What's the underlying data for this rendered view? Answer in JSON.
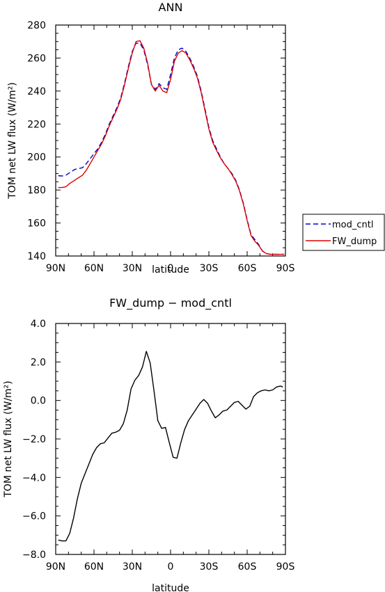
{
  "chart_data": [
    {
      "type": "line",
      "title": "ANN",
      "xlabel": "latitude",
      "ylabel": "TOM net LW flux (W/m²)",
      "x_tick_labels": [
        "90N",
        "60N",
        "30N",
        "0",
        "30S",
        "60S",
        "90S"
      ],
      "x_ticks": [
        -90,
        -60,
        -30,
        0,
        30,
        60,
        90
      ],
      "xlim": [
        -90,
        90
      ],
      "y_ticks": [
        140,
        160,
        180,
        200,
        220,
        240,
        260,
        280
      ],
      "ylim": [
        140,
        280
      ],
      "legend_position": "outside-right",
      "series": [
        {
          "name": "mod_cntl",
          "color": "#0000cc",
          "dash": "dashed",
          "x": [
            -88,
            -85,
            -82,
            -79,
            -75,
            -72,
            -69,
            -66,
            -63,
            -60,
            -57,
            -54,
            -51,
            -48,
            -45,
            -42,
            -39,
            -36,
            -33,
            -30,
            -27,
            -24,
            -21,
            -18,
            -15,
            -12,
            -9,
            -6,
            -3,
            0,
            3,
            6,
            9,
            12,
            15,
            18,
            21,
            24,
            27,
            30,
            33,
            36,
            39,
            42,
            45,
            48,
            51,
            54,
            57,
            60,
            63,
            66,
            69,
            72,
            75,
            78,
            81,
            84,
            87,
            89
          ],
          "y": [
            188.7,
            188.5,
            189,
            190.5,
            192.5,
            193,
            193.5,
            196,
            199,
            202,
            205,
            209,
            214,
            220,
            225,
            230,
            236,
            245,
            255,
            264,
            269,
            269,
            265,
            256,
            244,
            241,
            244.5,
            242,
            241,
            250,
            260,
            265,
            266,
            264,
            260,
            255,
            249,
            240,
            229,
            218,
            210,
            205,
            200,
            196,
            193,
            190,
            186,
            180,
            172,
            162,
            153,
            150,
            147,
            143,
            141.5,
            141,
            141,
            141,
            141,
            141
          ],
          "__note": null
        },
        {
          "name": "FW_dump",
          "color": "#dd0000",
          "dash": "solid",
          "x": [
            -88,
            -85,
            -82,
            -79,
            -75,
            -72,
            -69,
            -66,
            -63,
            -60,
            -57,
            -54,
            -51,
            -48,
            -45,
            -42,
            -39,
            -36,
            -33,
            -30,
            -27,
            -24,
            -21,
            -18,
            -15,
            -12,
            -9,
            -6,
            -3,
            0,
            3,
            6,
            9,
            12,
            15,
            18,
            21,
            24,
            27,
            30,
            33,
            36,
            39,
            42,
            45,
            48,
            51,
            54,
            57,
            60,
            63,
            66,
            69,
            72,
            75,
            78,
            81,
            84,
            87,
            89
          ],
          "y": [
            181.5,
            181.5,
            182,
            184,
            186,
            187.5,
            189,
            192,
            196,
            200,
            204,
            208,
            213,
            219,
            224,
            229,
            235,
            244,
            254,
            263,
            270,
            270.5,
            266,
            257,
            244,
            240,
            243.5,
            240,
            239,
            247,
            258,
            263,
            264.5,
            263,
            259,
            254,
            248,
            239,
            228,
            217,
            209,
            204,
            199.5,
            196,
            193,
            189.5,
            185.5,
            179.5,
            171.5,
            161.5,
            152.5,
            149,
            146.5,
            143,
            141.5,
            141,
            141,
            141,
            141,
            141
          ]
        }
      ]
    },
    {
      "type": "line",
      "title": "FW_dump − mod_cntl",
      "xlabel": "latitude",
      "ylabel": "TOM net LW flux (W/m²)",
      "x_tick_labels": [
        "90N",
        "60N",
        "30N",
        "0",
        "30S",
        "60S",
        "90S"
      ],
      "x_ticks": [
        -90,
        -60,
        -30,
        0,
        30,
        60,
        90
      ],
      "xlim": [
        -90,
        90
      ],
      "y_ticks": [
        -8,
        -6,
        -4,
        -2,
        0,
        2,
        4
      ],
      "y_tick_labels": [
        "−8.0",
        "−6.0",
        "−4.0",
        "−2.0",
        "0.0",
        "2.0",
        "4.0"
      ],
      "ylim": [
        -8,
        4
      ],
      "series": [
        {
          "color": "#000000",
          "dash": "solid",
          "x": [
            -88,
            -85,
            -82,
            -79,
            -76,
            -73,
            -70,
            -67,
            -64,
            -61,
            -58,
            -55,
            -52,
            -49,
            -46,
            -43,
            -40,
            -37,
            -34,
            -31,
            -28,
            -25,
            -22,
            -19,
            -16,
            -13,
            -10,
            -7,
            -4,
            -1,
            2,
            5,
            8,
            11,
            14,
            17,
            20,
            23,
            26,
            29,
            32,
            35,
            38,
            41,
            44,
            47,
            50,
            53,
            56,
            59,
            62,
            65,
            68,
            71,
            74,
            77,
            80,
            83,
            86,
            88
          ],
          "y": [
            -7.25,
            -7.3,
            -7.3,
            -6.9,
            -6.1,
            -5.1,
            -4.3,
            -3.8,
            -3.3,
            -2.8,
            -2.45,
            -2.25,
            -2.2,
            -1.95,
            -1.7,
            -1.65,
            -1.55,
            -1.2,
            -0.5,
            0.6,
            1.05,
            1.3,
            1.75,
            2.55,
            1.95,
            0.5,
            -1.05,
            -1.45,
            -1.4,
            -2.2,
            -2.95,
            -3.0,
            -2.2,
            -1.5,
            -1.05,
            -0.75,
            -0.45,
            -0.15,
            0.05,
            -0.15,
            -0.55,
            -0.9,
            -0.75,
            -0.55,
            -0.5,
            -0.3,
            -0.1,
            -0.05,
            -0.25,
            -0.45,
            -0.3,
            0.2,
            0.4,
            0.5,
            0.55,
            0.5,
            0.55,
            0.7,
            0.75,
            0.7
          ]
        }
      ]
    }
  ]
}
